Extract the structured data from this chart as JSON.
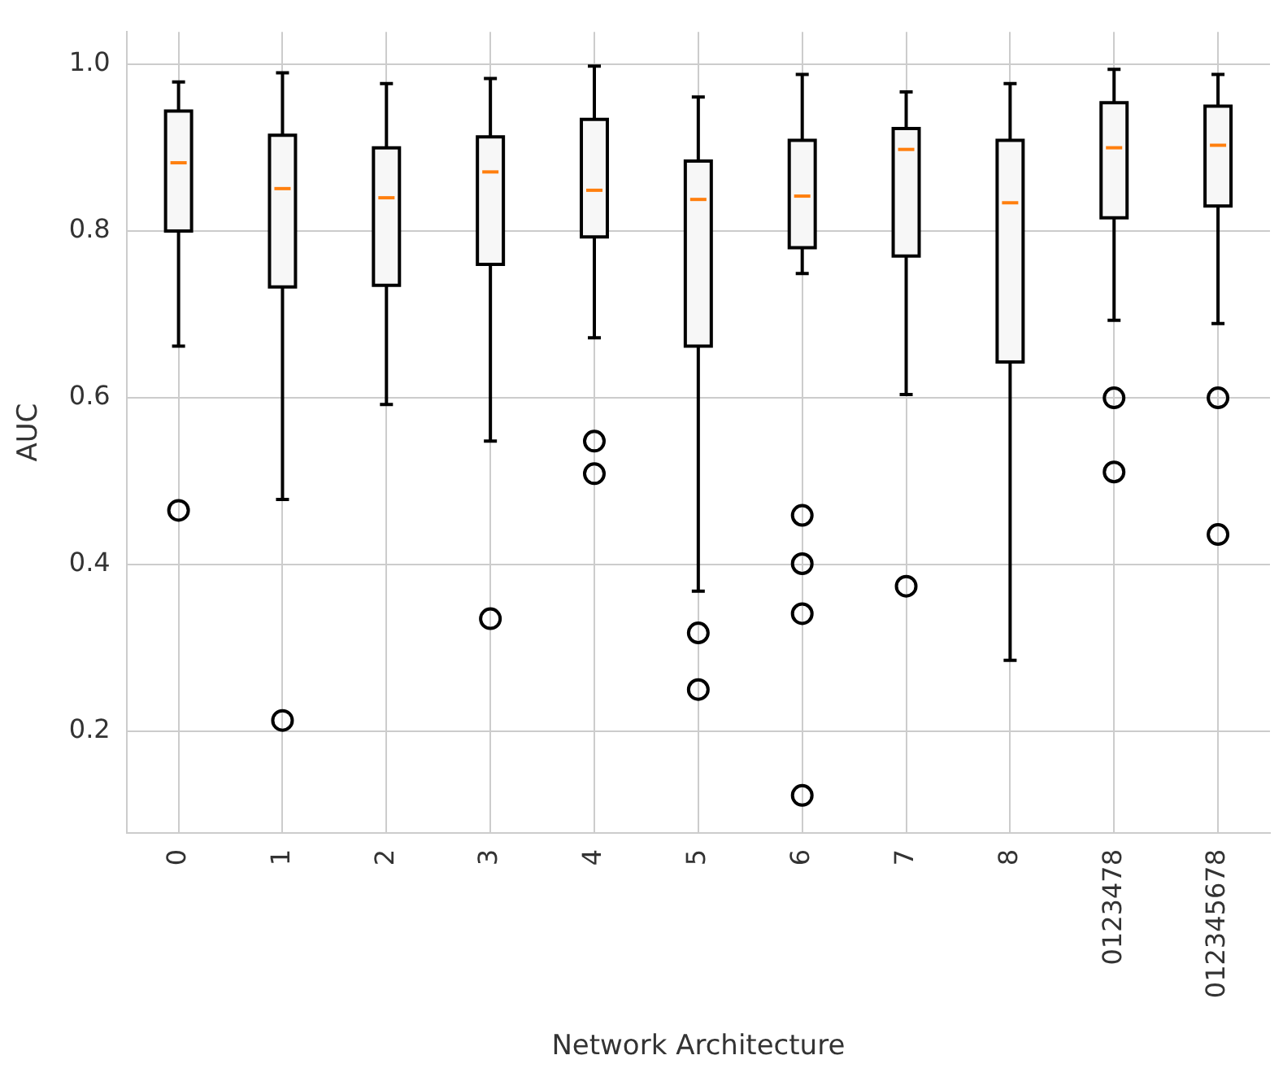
{
  "chart_data": {
    "type": "box",
    "xlabel": "Network Architecture",
    "ylabel": "AUC",
    "categories": [
      "0",
      "1",
      "2",
      "3",
      "4",
      "5",
      "6",
      "7",
      "8",
      "0123478",
      "012345678"
    ],
    "boxes": [
      {
        "low": 0.662,
        "q1": 0.8,
        "median": 0.882,
        "q3": 0.944,
        "high": 0.979,
        "outliers": [
          0.465
        ]
      },
      {
        "low": 0.478,
        "q1": 0.733,
        "median": 0.851,
        "q3": 0.915,
        "high": 0.99,
        "outliers": [
          0.213
        ]
      },
      {
        "low": 0.592,
        "q1": 0.735,
        "median": 0.84,
        "q3": 0.9,
        "high": 0.977
      },
      {
        "low": 0.548,
        "q1": 0.76,
        "median": 0.871,
        "q3": 0.913,
        "high": 0.983,
        "outliers": [
          0.335
        ]
      },
      {
        "low": 0.672,
        "q1": 0.793,
        "median": 0.849,
        "q3": 0.934,
        "high": 0.998,
        "outliers": [
          0.548,
          0.509
        ]
      },
      {
        "low": 0.368,
        "q1": 0.662,
        "median": 0.838,
        "q3": 0.884,
        "high": 0.961,
        "outliers": [
          0.318,
          0.25
        ]
      },
      {
        "low": 0.749,
        "q1": 0.78,
        "median": 0.842,
        "q3": 0.909,
        "high": 0.988,
        "outliers": [
          0.459,
          0.401,
          0.341,
          0.123
        ]
      },
      {
        "low": 0.604,
        "q1": 0.77,
        "median": 0.898,
        "q3": 0.923,
        "high": 0.967,
        "outliers": [
          0.374
        ]
      },
      {
        "low": 0.285,
        "q1": 0.643,
        "median": 0.834,
        "q3": 0.909,
        "high": 0.977
      },
      {
        "low": 0.693,
        "q1": 0.816,
        "median": 0.9,
        "q3": 0.954,
        "high": 0.994,
        "outliers": [
          0.6,
          0.511
        ]
      },
      {
        "low": 0.689,
        "q1": 0.83,
        "median": 0.903,
        "q3": 0.95,
        "high": 0.988,
        "outliers": [
          0.6,
          0.436
        ]
      }
    ],
    "ylim": [
      0.078,
      1.039
    ],
    "yticks": [
      0.2,
      0.4,
      0.6,
      0.8,
      {
        "value": 1,
        "label": "1.0"
      }
    ],
    "grid": true
  }
}
